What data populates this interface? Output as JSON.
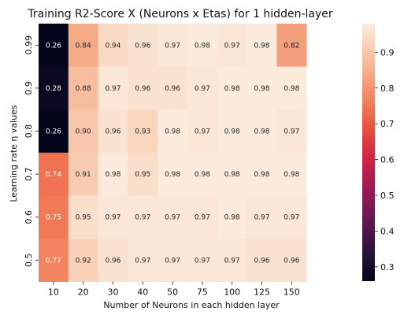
{
  "chart_data": {
    "type": "heatmap",
    "title": "Training R2-Score X (Neurons x Etas) for 1 hidden-layer",
    "xlabel": "Number of Neurons in each hidden layer",
    "ylabel": "Learning rate η values",
    "x_categories": [
      "10",
      "20",
      "30",
      "40",
      "50",
      "75",
      "100",
      "125",
      "150"
    ],
    "y_categories": [
      "0.99",
      "0.9",
      "0.8",
      "0.7",
      "0.6",
      "0.5"
    ],
    "values": [
      [
        0.26,
        0.84,
        0.94,
        0.96,
        0.97,
        0.98,
        0.97,
        0.98,
        0.82
      ],
      [
        0.28,
        0.88,
        0.97,
        0.96,
        0.96,
        0.97,
        0.98,
        0.98,
        0.98
      ],
      [
        0.26,
        0.9,
        0.96,
        0.93,
        0.98,
        0.97,
        0.98,
        0.98,
        0.97
      ],
      [
        0.74,
        0.91,
        0.98,
        0.95,
        0.98,
        0.98,
        0.98,
        0.98,
        0.98
      ],
      [
        0.75,
        0.95,
        0.97,
        0.97,
        0.97,
        0.97,
        0.98,
        0.97,
        0.97
      ],
      [
        0.77,
        0.92,
        0.96,
        0.97,
        0.97,
        0.97,
        0.97,
        0.96,
        0.96
      ]
    ],
    "labels": [
      [
        "0.26",
        "0.84",
        "0.94",
        "0.96",
        "0.97",
        "0.98",
        "0.97",
        "0.98",
        "0.82"
      ],
      [
        "0.28",
        "0.88",
        "0.97",
        "0.96",
        "0.96",
        "0.97",
        "0.98",
        "0.98",
        "0.98"
      ],
      [
        "0.26",
        "0.90",
        "0.96",
        "0.93",
        "0.98",
        "0.97",
        "0.98",
        "0.98",
        "0.97"
      ],
      [
        "0.74",
        "0.91",
        "0.98",
        "0.95",
        "0.98",
        "0.98",
        "0.98",
        "0.98",
        "0.98"
      ],
      [
        "0.75",
        "0.95",
        "0.97",
        "0.97",
        "0.97",
        "0.97",
        "0.98",
        "0.97",
        "0.97"
      ],
      [
        "0.77",
        "0.92",
        "0.96",
        "0.97",
        "0.97",
        "0.97",
        "0.97",
        "0.96",
        "0.96"
      ]
    ],
    "colormap": "rocket",
    "colorbar": {
      "range": [
        0.26,
        0.98
      ],
      "ticks": [
        "0.3",
        "0.4",
        "0.5",
        "0.6",
        "0.7",
        "0.8",
        "0.9"
      ]
    },
    "grid": false,
    "legend": "colorbar-right"
  }
}
